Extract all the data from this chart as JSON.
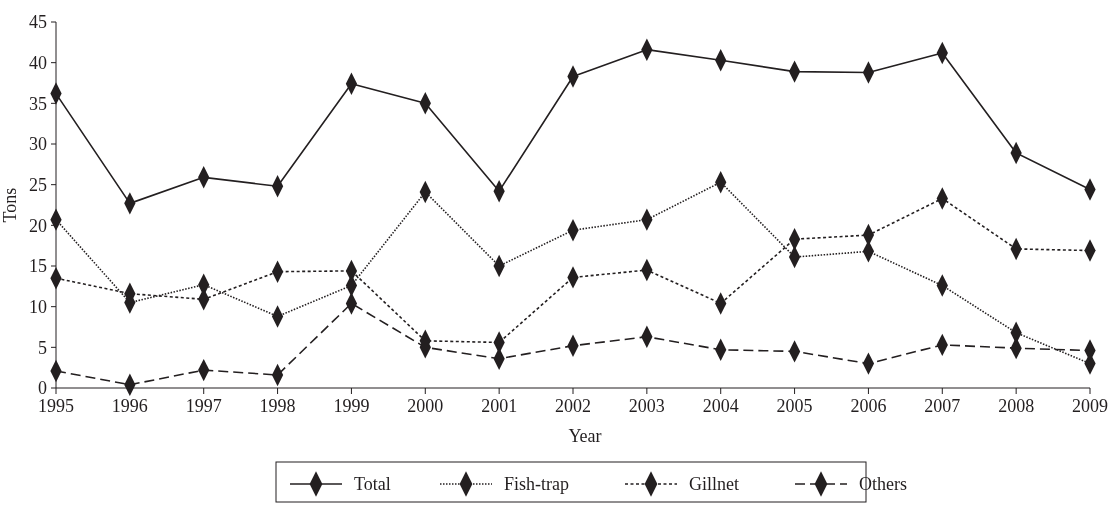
{
  "chart_data": {
    "type": "line",
    "xlabel": "Year",
    "ylabel": "Tons",
    "x": [
      1995,
      1996,
      1997,
      1998,
      1999,
      2000,
      2001,
      2002,
      2003,
      2004,
      2005,
      2006,
      2007,
      2008,
      2009
    ],
    "xlim": [
      1995,
      2009
    ],
    "xticks": [
      1995,
      1996,
      1997,
      1998,
      1999,
      2000,
      2001,
      2002,
      2003,
      2004,
      2005,
      2006,
      2007,
      2008,
      2009
    ],
    "ylim": [
      0,
      45
    ],
    "yticks": [
      0,
      5,
      10,
      15,
      20,
      25,
      30,
      35,
      40,
      45
    ],
    "marker": "diamond",
    "grid": false,
    "legend": "bottom",
    "series": [
      {
        "name": "Total",
        "color": "#231f20",
        "line_style": "solid",
        "values": [
          36.2,
          22.7,
          25.9,
          24.8,
          37.4,
          35.0,
          24.2,
          38.3,
          41.6,
          40.3,
          38.9,
          38.8,
          41.2,
          28.9,
          24.4
        ]
      },
      {
        "name": "Fish-trap",
        "color": "#231f20",
        "line_style": "dotted",
        "values": [
          20.7,
          10.5,
          12.7,
          8.8,
          12.6,
          24.1,
          15.0,
          19.4,
          20.7,
          25.3,
          16.1,
          16.8,
          12.6,
          6.8,
          3.0
        ]
      },
      {
        "name": "Gillnet",
        "color": "#231f20",
        "line_style": "dotted",
        "values": [
          13.5,
          11.6,
          10.9,
          14.3,
          14.4,
          5.8,
          5.6,
          13.6,
          14.5,
          10.4,
          18.3,
          18.8,
          23.3,
          17.1,
          16.9
        ]
      },
      {
        "name": "Others",
        "color": "#231f20",
        "line_style": "dashed",
        "values": [
          2.1,
          0.4,
          2.2,
          1.6,
          10.4,
          5.0,
          3.6,
          5.2,
          6.3,
          4.7,
          4.5,
          3.0,
          5.3,
          4.9,
          4.6
        ]
      }
    ]
  }
}
